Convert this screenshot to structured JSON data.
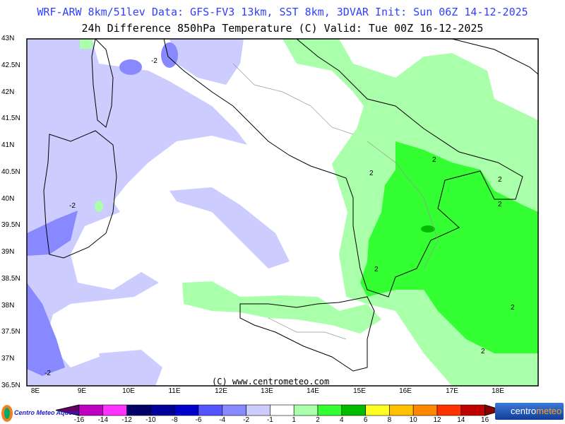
{
  "header": {
    "line1": "WRF-ARW 8km/51lev  Data: GFS-FV3 13km, SST 8km, 3DVAR  Init: Sun 06Z 14-12-2025",
    "line2": "24h Difference 850hPa Temperature (C)  Valid: Tue 00Z 16-12-2025"
  },
  "axes": {
    "lat_labels": [
      "43N",
      "42.5N",
      "42N",
      "41.5N",
      "41N",
      "40.5N",
      "40N",
      "39.5N",
      "39N",
      "38.5N",
      "38N",
      "37.5N",
      "37N",
      "36.5N"
    ],
    "lon_labels": [
      "8E",
      "9E",
      "10E",
      "11E",
      "12E",
      "13E",
      "14E",
      "15E",
      "16E",
      "17E",
      "18E"
    ]
  },
  "map": {
    "copyright": "(C) www.centrometeo.com",
    "contour_labels": [
      "-2",
      "2",
      "2",
      "2",
      "2",
      "2",
      "2",
      "2",
      "-2",
      "-2"
    ]
  },
  "colorbar": {
    "labels": [
      "-16",
      "-14",
      "-12",
      "-10",
      "-8",
      "-6",
      "-4",
      "-2",
      "-1",
      "1",
      "2",
      "4",
      "6",
      "8",
      "10",
      "12",
      "14",
      "16"
    ],
    "colors": [
      "#c000c0",
      "#ff33ff",
      "#000066",
      "#000099",
      "#0000cc",
      "#5555ff",
      "#8888ff",
      "#ccccff",
      "#ffffff",
      "#aaffaa",
      "#33ff33",
      "#00bb00",
      "#ffff22",
      "#ffc000",
      "#ff8800",
      "#ff3300",
      "#c00000"
    ],
    "low_color": "#660066",
    "high_color": "#880000"
  },
  "logos": {
    "left": "Centro Meteo Aquese",
    "right_a": "centro",
    "right_b": "meteo"
  }
}
